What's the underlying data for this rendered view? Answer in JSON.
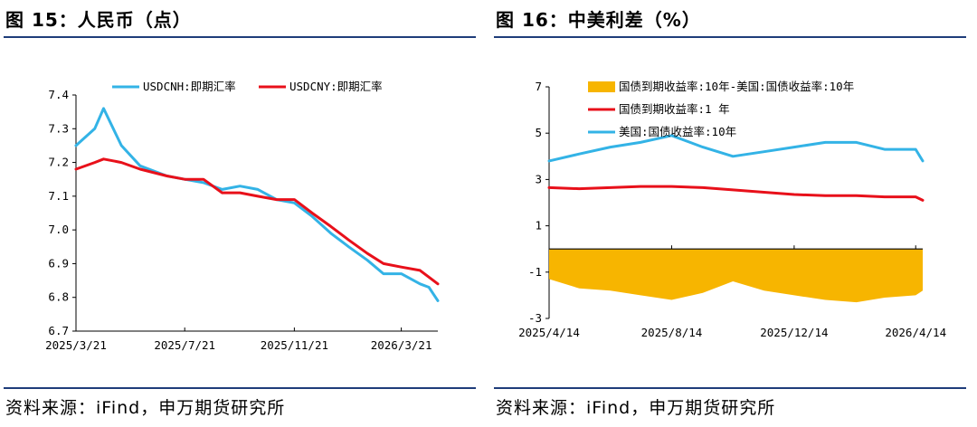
{
  "panels": {
    "left_title": "图 15：人民币（点）",
    "right_title": "图 16：中美利差（%）",
    "left_source": "资料来源：iFind，申万期货研究所",
    "right_source": "资料来源：iFind，申万期货研究所"
  },
  "colors": {
    "blue": "#33b3e6",
    "red": "#e8101a",
    "gold": "#f7b500",
    "rule": "#1f3d7a"
  },
  "chart_data": [
    {
      "type": "line",
      "title": "",
      "ylim": [
        6.7,
        7.4
      ],
      "yticks": [
        "7.4",
        "7.3",
        "7.2",
        "7.1",
        "7.0",
        "6.9",
        "6.8",
        "6.7"
      ],
      "xticks": [
        "2025/3/21",
        "2025/7/21",
        "2025/11/21",
        "2026/3/21"
      ],
      "x": [
        "2025/3/21",
        "2025/4/11",
        "2025/4/21",
        "2025/5/11",
        "2025/6/1",
        "2025/7/1",
        "2025/7/21",
        "2025/8/11",
        "2025/9/1",
        "2025/9/21",
        "2025/10/11",
        "2025/11/1",
        "2025/11/21",
        "2025/12/11",
        "2026/1/1",
        "2026/1/21",
        "2026/2/11",
        "2026/3/1",
        "2026/3/21",
        "2026/4/11",
        "2026/4/21",
        "2026/5/1"
      ],
      "series": [
        {
          "name": "USDCNH:即期汇率",
          "color": "#33b3e6",
          "values": [
            7.25,
            7.3,
            7.36,
            7.25,
            7.19,
            7.16,
            7.15,
            7.14,
            7.12,
            7.13,
            7.12,
            7.09,
            7.08,
            7.04,
            6.99,
            6.95,
            6.91,
            6.87,
            6.87,
            6.84,
            6.83,
            6.79
          ]
        },
        {
          "name": "USDCNY:即期汇率",
          "color": "#e8101a",
          "values": [
            7.18,
            7.2,
            7.21,
            7.2,
            7.18,
            7.16,
            7.15,
            7.15,
            7.11,
            7.11,
            7.1,
            7.09,
            7.09,
            7.05,
            7.01,
            6.97,
            6.93,
            6.9,
            6.89,
            6.88,
            6.86,
            6.84
          ]
        }
      ]
    },
    {
      "type": "line",
      "title": "",
      "ylim": [
        -3,
        7
      ],
      "yticks": [
        "7",
        "5",
        "3",
        "1",
        "-1",
        "-3"
      ],
      "xticks": [
        "2025/4/14",
        "2025/8/14",
        "2025/12/14",
        "2026/4/14"
      ],
      "x": [
        "2025/4/14",
        "2025/5/14",
        "2025/6/14",
        "2025/7/14",
        "2025/8/14",
        "2025/9/14",
        "2025/10/14",
        "2025/11/14",
        "2025/12/14",
        "2026/1/14",
        "2026/2/14",
        "2026/3/14",
        "2026/4/14",
        "2026/4/21"
      ],
      "series": [
        {
          "name": "国债到期收益率:10年-美国:国债收益率:10年",
          "color": "#f7b500",
          "kind": "area",
          "values": [
            -1.3,
            -1.7,
            -1.8,
            -2.0,
            -2.2,
            -1.9,
            -1.4,
            -1.8,
            -2.0,
            -2.2,
            -2.3,
            -2.1,
            -2.0,
            -1.8
          ]
        },
        {
          "name": "国债到期收益率:1 年",
          "color": "#e8101a",
          "values": [
            2.65,
            2.6,
            2.65,
            2.7,
            2.7,
            2.65,
            2.55,
            2.45,
            2.35,
            2.3,
            2.3,
            2.25,
            2.25,
            2.1
          ]
        },
        {
          "name": "美国:国债收益率:10年",
          "color": "#33b3e6",
          "values": [
            3.8,
            4.1,
            4.4,
            4.6,
            4.9,
            4.4,
            4.0,
            4.2,
            4.4,
            4.6,
            4.6,
            4.3,
            4.3,
            3.8
          ]
        }
      ]
    }
  ]
}
